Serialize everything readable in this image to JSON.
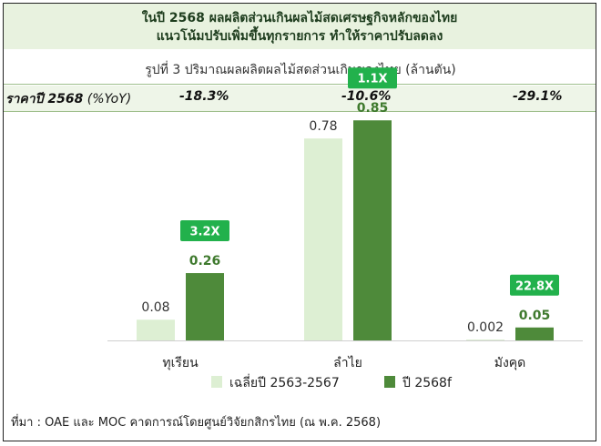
{
  "header": {
    "line1": "ในปี 2568 ผลผลิตส่วนเกินผลไม้สดเศรษฐกิจหลักของไทย",
    "line2": "แนวโน้มปรับเพิ่มขึ้นทุกรายการ ทำให้ราคาปรับลดลง"
  },
  "colors": {
    "header_bg": "#e8f2df",
    "series_light": "#ddefd3",
    "series_dark": "#4e8a3a",
    "badge_bg": "#22b14c",
    "badge_text": "#ffffff"
  },
  "yoy": {
    "label_bold": "ราคาปี 2568",
    "label_rest": " (%YoY)",
    "values": [
      "-18.3%",
      "-10.6%",
      "-29.1%"
    ]
  },
  "source": "ที่มา : OAE และ MOC คาดการณ์โดยศูนย์วิจัยกสิกรไทย (ณ พ.ค. 2568)",
  "chart_data": {
    "type": "bar",
    "title": "รูปที่ 3 ปริมาณผลผลิตผลไม้สดส่วนเกินของไทย (ล้านตัน)",
    "categories": [
      "ทุเรียน",
      "ลำไย",
      "มังคุด"
    ],
    "series": [
      {
        "name": "เฉลี่ยปี 2563-2567",
        "values": [
          0.08,
          0.78,
          0.002
        ],
        "labels": [
          "0.08",
          "0.78",
          "0.002"
        ],
        "color": "#ddefd3"
      },
      {
        "name": "ปี 2568f",
        "values": [
          0.26,
          0.85,
          0.05
        ],
        "labels": [
          "0.26",
          "0.85",
          "0.05"
        ],
        "color": "#4e8a3a"
      }
    ],
    "badges": [
      "3.2X",
      "1.1X",
      "22.8X"
    ],
    "ylim": [
      0,
      0.9
    ],
    "grid": false,
    "legend": "bottom"
  }
}
